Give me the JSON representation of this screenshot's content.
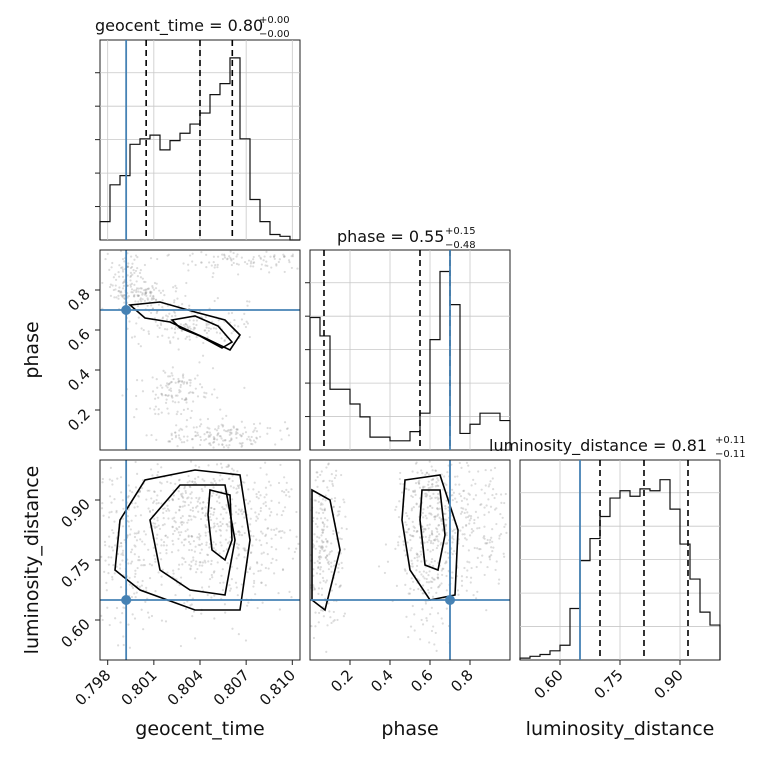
{
  "chart_data": {
    "type": "corner",
    "parameters": [
      "geocent_time",
      "phase",
      "luminosity_distance"
    ],
    "axis_labels": {
      "geocent_time": "geocent_time",
      "phase": "phase",
      "luminosity_distance": "luminosity_distance"
    },
    "ranges": {
      "geocent_time": [
        0.7975,
        0.8105
      ],
      "phase": [
        0.0,
        1.0
      ],
      "luminosity_distance": [
        0.5,
        1.0
      ]
    },
    "ticks": {
      "geocent_time": [
        "0.798",
        "0.801",
        "0.804",
        "0.807",
        "0.810"
      ],
      "phase": [
        "0.2",
        "0.4",
        "0.6",
        "0.8"
      ],
      "luminosity_distance": [
        "0.60",
        "0.75",
        "0.90"
      ]
    },
    "tick_values": {
      "geocent_time": [
        0.798,
        0.801,
        0.804,
        0.807,
        0.81
      ],
      "phase": [
        0.2,
        0.4,
        0.6,
        0.8
      ],
      "luminosity_distance": [
        0.6,
        0.75,
        0.9
      ]
    },
    "titles": [
      {
        "param": "geocent_time",
        "text": "geocent_time = 0.80",
        "sup": "+0.00",
        "sub": "−0.00"
      },
      {
        "param": "phase",
        "text": "phase = 0.55",
        "sup": "+0.15",
        "sub": "−0.48"
      },
      {
        "param": "luminosity_distance",
        "text": "luminosity_distance = 0.81",
        "sup": "+0.11",
        "sub": "−0.11"
      }
    ],
    "truths": {
      "geocent_time": 0.7992,
      "phase": 0.7,
      "luminosity_distance": 0.65
    },
    "quantiles": {
      "geocent_time": [
        0.8005,
        0.804,
        0.8061
      ],
      "phase": [
        0.07,
        0.55,
        0.7
      ],
      "luminosity_distance": [
        0.7,
        0.81,
        0.92
      ]
    },
    "histograms": {
      "geocent_time": [
        0.1,
        0.3,
        0.35,
        0.52,
        0.55,
        0.57,
        0.49,
        0.54,
        0.58,
        0.63,
        0.69,
        0.79,
        0.85,
        0.99,
        0.55,
        0.22,
        0.1,
        0.03,
        0.02,
        0.0
      ],
      "phase": [
        0.72,
        0.62,
        0.33,
        0.33,
        0.25,
        0.18,
        0.07,
        0.07,
        0.05,
        0.05,
        0.1,
        0.2,
        0.6,
        0.97,
        0.79,
        0.09,
        0.14,
        0.2,
        0.2,
        0.16
      ],
      "luminosity_distance": [
        0.01,
        0.02,
        0.03,
        0.05,
        0.08,
        0.28,
        0.54,
        0.66,
        0.78,
        0.88,
        0.92,
        0.89,
        0.93,
        0.92,
        0.98,
        0.82,
        0.63,
        0.44,
        0.26,
        0.19
      ]
    }
  }
}
